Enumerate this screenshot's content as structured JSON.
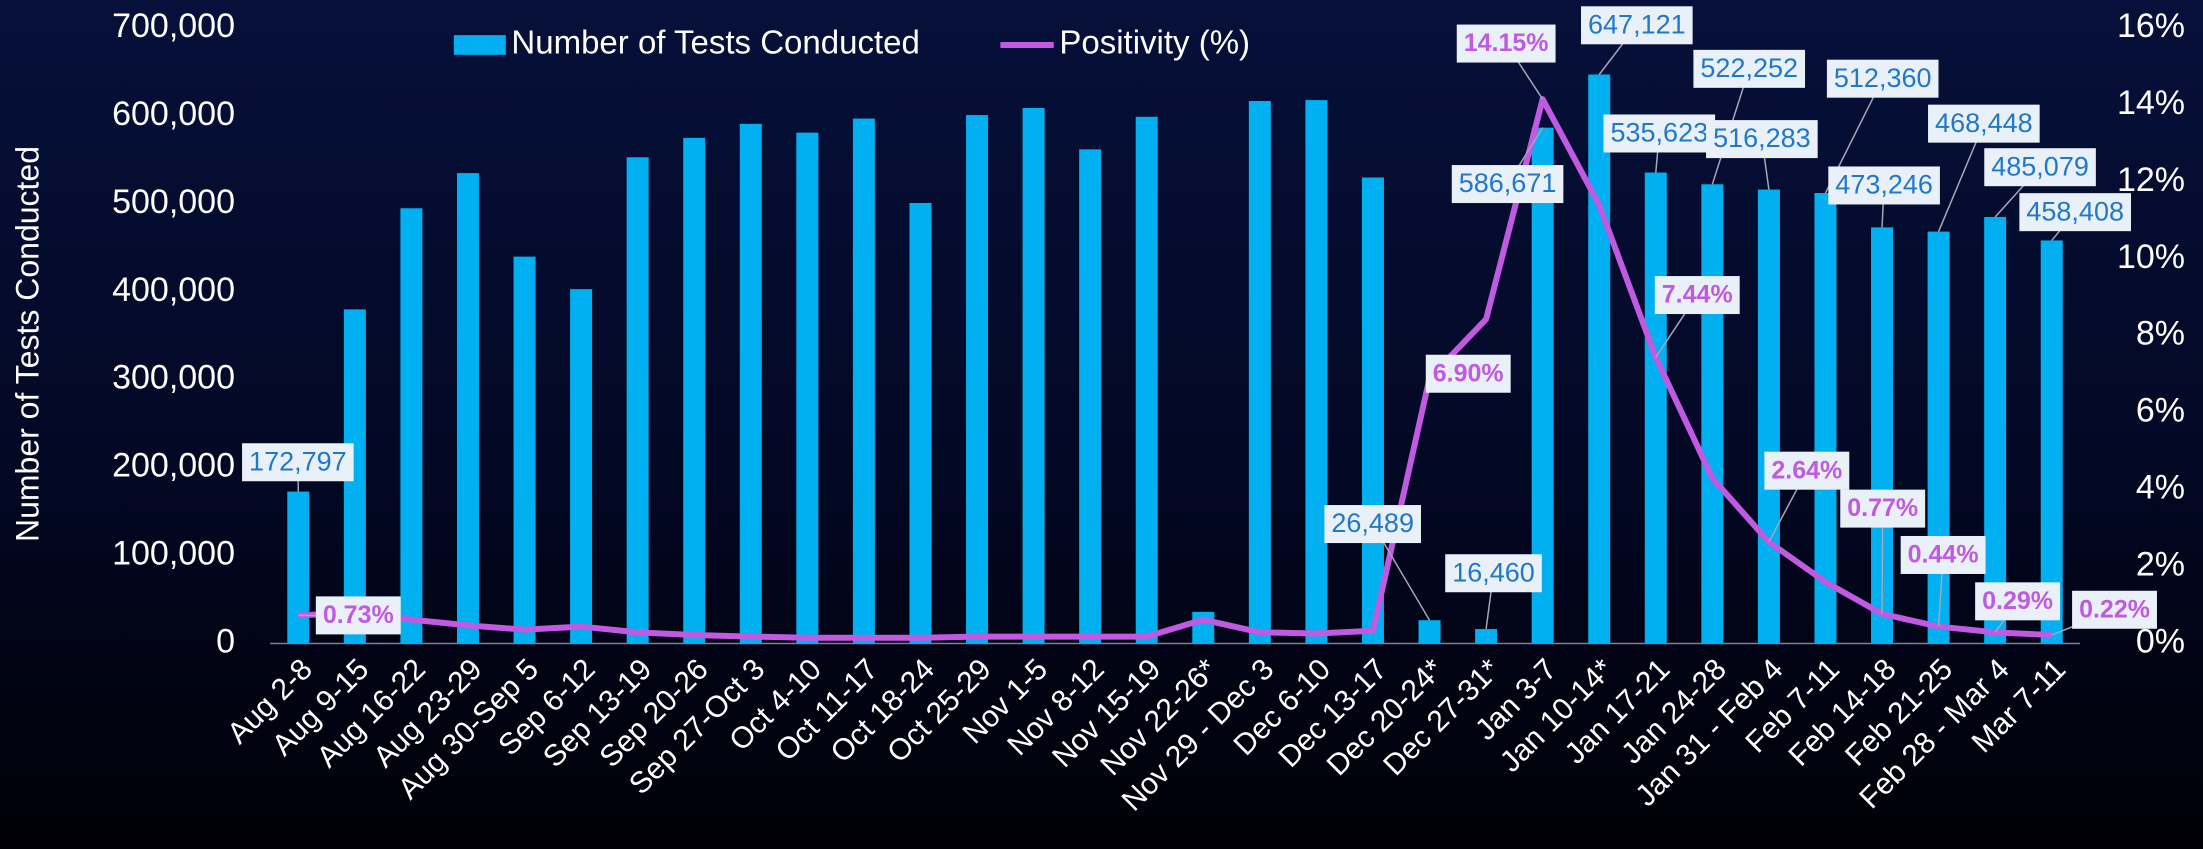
{
  "chart_data": {
    "type": "bar-line",
    "y_label": "Number of Tests Conducted",
    "categories": [
      "Aug 2-8",
      "Aug 9-15",
      "Aug 16-22",
      "Aug 23-29",
      "Aug 30-Sep 5",
      "Sep 6-12",
      "Sep 13-19",
      "Sep 20-26",
      "Sep 27-Oct 3",
      "Oct 4-10",
      "Oct 11-17",
      "Oct 18-24",
      "Oct 25-29",
      "Nov 1-5",
      "Nov 8-12",
      "Nov 15-19",
      "Nov 22-26*",
      "Nov 29 - Dec 3",
      "Dec 6-10",
      "Dec 13-17",
      "Dec 20-24*",
      "Dec 27-31*",
      "Jan 3-7",
      "Jan 10-14*",
      "Jan 17-21",
      "Jan 24-28",
      "Jan 31 - Feb 4",
      "Feb 7-11",
      "Feb 14-18",
      "Feb 21-25",
      "Feb 28 - Mar 4",
      "Mar 7-11"
    ],
    "series": [
      {
        "name": "Number of Tests Conducted",
        "type": "bar",
        "color": "#00b0f0",
        "values": [
          172797,
          380000,
          495000,
          535000,
          440000,
          403000,
          553000,
          575000,
          591000,
          581000,
          597000,
          501000,
          601000,
          609000,
          562000,
          599000,
          36000,
          617000,
          618000,
          530000,
          26489,
          16460,
          586671,
          647121,
          535623,
          522252,
          516283,
          512360,
          473246,
          468448,
          485079,
          458408
        ],
        "value_labels": [
          "172,797",
          null,
          null,
          null,
          null,
          null,
          null,
          null,
          null,
          null,
          null,
          null,
          null,
          null,
          null,
          null,
          null,
          null,
          null,
          null,
          "26,489",
          "16,460",
          "586,671",
          "647,121",
          "535,623",
          "522,252",
          "516,283",
          "512,360",
          "473,246",
          "468,448",
          "485,079",
          "458,408"
        ]
      },
      {
        "name": "Positivity (%)",
        "type": "line",
        "axis": "y2",
        "color": "#c05ae0",
        "values": [
          0.73,
          0.8,
          0.62,
          0.47,
          0.36,
          0.44,
          0.29,
          0.22,
          0.18,
          0.15,
          0.15,
          0.15,
          0.18,
          0.18,
          0.18,
          0.18,
          0.62,
          0.29,
          0.26,
          0.33,
          6.9,
          8.43,
          14.15,
          11.4,
          7.44,
          4.3,
          2.64,
          1.6,
          0.77,
          0.44,
          0.29,
          0.22
        ],
        "value_labels": [
          "0.73%",
          null,
          null,
          null,
          null,
          null,
          null,
          null,
          null,
          null,
          null,
          null,
          null,
          null,
          null,
          null,
          null,
          null,
          null,
          null,
          "6.90%",
          null,
          "14.15%",
          null,
          "7.44%",
          null,
          "2.64%",
          null,
          "0.77%",
          "0.44%",
          "0.29%",
          "0.22%"
        ]
      }
    ],
    "ylim": [
      0,
      700000
    ],
    "yticks": [
      0,
      {
        "value": 100000,
        "label": "100,000"
      },
      {
        "value": 200000,
        "label": "200,000"
      },
      {
        "value": 300000,
        "label": "300,000"
      },
      {
        "value": 400000,
        "label": "400,000"
      },
      {
        "value": 500000,
        "label": "500,000"
      },
      {
        "value": 600000,
        "label": "600,000"
      },
      {
        "value": 700000,
        "label": "700,000"
      }
    ],
    "y2lim": [
      0,
      16
    ],
    "y2ticks": [
      {
        "value": 0,
        "label": "0%"
      },
      {
        "value": 2,
        "label": "2%"
      },
      {
        "value": 4,
        "label": "4%"
      },
      {
        "value": 6,
        "label": "6%"
      },
      {
        "value": 8,
        "label": "8%"
      },
      {
        "value": 10,
        "label": "10%"
      },
      {
        "value": 12,
        "label": "12%"
      },
      {
        "value": 14,
        "label": "14%"
      },
      {
        "value": 16,
        "label": "16%"
      }
    ],
    "legend": "top"
  }
}
